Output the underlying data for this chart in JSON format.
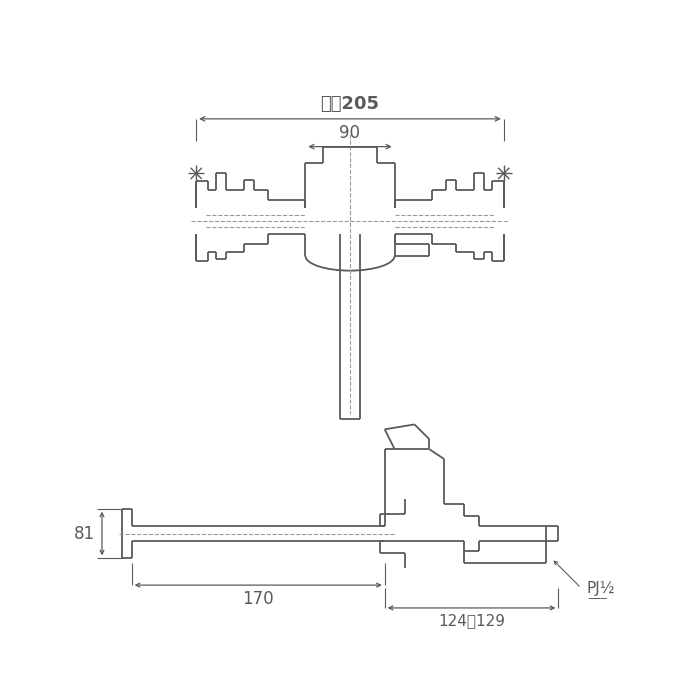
{
  "bg_color": "#ffffff",
  "line_color": "#5a5a5a",
  "dim_color": "#5a5a5a",
  "dashed_color": "#999999",
  "dim_max205": "最大205",
  "dim_90": "90",
  "dim_81": "81",
  "dim_170": "170",
  "dim_124_129": "124～129",
  "dim_pj": "PJ½",
  "figsize": [
    7.0,
    7.0
  ],
  "dpi": 100
}
